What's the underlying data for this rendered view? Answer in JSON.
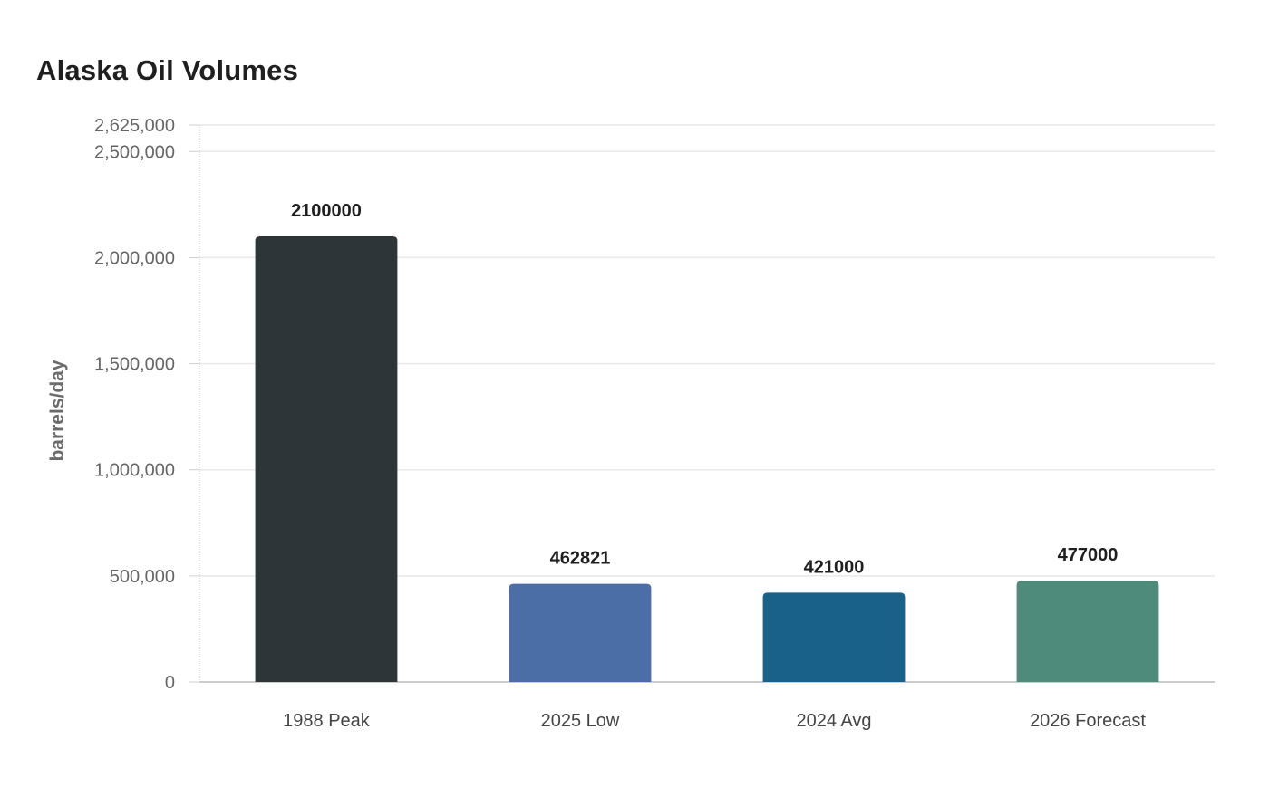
{
  "chart_data": {
    "type": "bar",
    "title": "Alaska Oil Volumes",
    "xlabel": "",
    "ylabel": "barrels/day",
    "categories": [
      "1988 Peak",
      "2025 Low",
      "2024 Avg",
      "2026 Forecast"
    ],
    "values": [
      2100000,
      462821,
      421000,
      477000
    ],
    "data_labels": [
      "2100000",
      "462821",
      "421000",
      "477000"
    ],
    "colors": [
      "#2e3538",
      "#4b6ea6",
      "#1a6189",
      "#4f8b7a"
    ],
    "ylim": [
      0,
      2625000
    ],
    "yticks": [
      0,
      500000,
      1000000,
      1500000,
      2000000,
      2500000,
      2625000
    ],
    "ytick_labels": [
      "0",
      "500,000",
      "1,000,000",
      "1,500,000",
      "2,000,000",
      "2,500,000",
      "2,625,000"
    ],
    "grid": true,
    "legend": "none"
  }
}
